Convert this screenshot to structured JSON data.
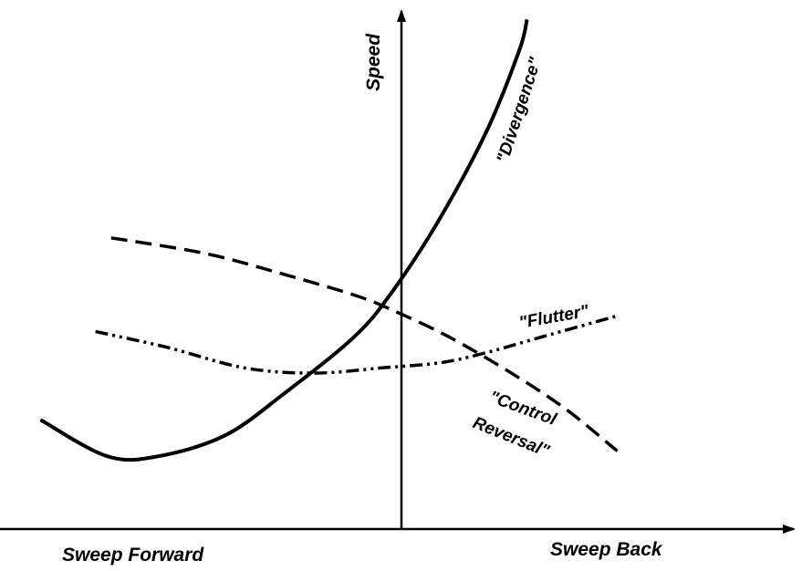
{
  "chart_data": {
    "type": "line",
    "title": "",
    "xlabel_left": "Sweep Forward",
    "xlabel_right": "Sweep Back",
    "ylabel": "Speed",
    "xlim": [
      -1,
      1
    ],
    "ylim": [
      0,
      1
    ],
    "grid": false,
    "legend": "none",
    "series": [
      {
        "name": "\"Divergence\"",
        "style": "solid",
        "points": [
          [
            -0.92,
            0.21
          ],
          [
            -0.75,
            0.14
          ],
          [
            -0.62,
            0.14
          ],
          [
            -0.45,
            0.18
          ],
          [
            -0.3,
            0.26
          ],
          [
            -0.12,
            0.37
          ],
          [
            -0.02,
            0.46
          ],
          [
            0.1,
            0.6
          ],
          [
            0.22,
            0.77
          ],
          [
            0.3,
            0.92
          ],
          [
            0.32,
            0.98
          ]
        ]
      },
      {
        "name": "\"Flutter\"",
        "style": "dash-dot",
        "points": [
          [
            -0.78,
            0.38
          ],
          [
            -0.6,
            0.35
          ],
          [
            -0.4,
            0.31
          ],
          [
            -0.22,
            0.3
          ],
          [
            -0.05,
            0.31
          ],
          [
            0.1,
            0.32
          ],
          [
            0.22,
            0.34
          ],
          [
            0.36,
            0.37
          ],
          [
            0.55,
            0.41
          ]
        ]
      },
      {
        "name": "\"Control Reversal\"",
        "style": "dashed",
        "points": [
          [
            -0.74,
            0.56
          ],
          [
            -0.5,
            0.53
          ],
          [
            -0.3,
            0.49
          ],
          [
            -0.12,
            0.45
          ],
          [
            -0.02,
            0.42
          ],
          [
            0.12,
            0.37
          ],
          [
            0.28,
            0.3
          ],
          [
            0.42,
            0.23
          ],
          [
            0.55,
            0.15
          ]
        ]
      }
    ],
    "annotations": {
      "divergence": "\"Divergence\"",
      "flutter": "\"Flutter\"",
      "control_line1": "\"Control",
      "control_line2": "Reversal\""
    }
  }
}
